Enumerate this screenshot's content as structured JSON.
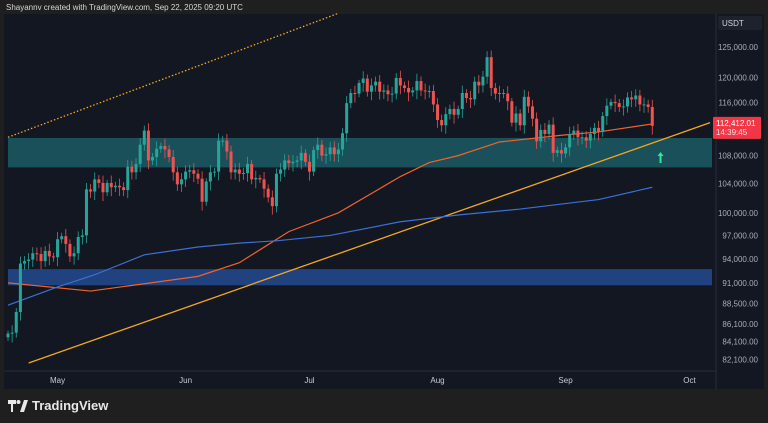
{
  "header": {
    "credit": "Shayannv created with TradingView.com, Sep 22, 2025 09:20 UTC"
  },
  "footer": {
    "logo_text": "TradingView"
  },
  "chart_data": {
    "type": "candlestick",
    "interval": "1D",
    "currency_label": "USDT",
    "y_scale": "log",
    "ylim": [
      80500,
      132000
    ],
    "y_ticks": [
      {
        "value": 125000,
        "label": "125,000.00"
      },
      {
        "value": 120000,
        "label": "120,000.00"
      },
      {
        "value": 116000,
        "label": "116,000.00"
      },
      {
        "value": 108000,
        "label": "108,000.00"
      },
      {
        "value": 104000,
        "label": "104,000.00"
      },
      {
        "value": 100000,
        "label": "100,000.00"
      },
      {
        "value": 97000,
        "label": "97,000.00"
      },
      {
        "value": 94000,
        "label": "94,000.00"
      },
      {
        "value": 91000,
        "label": "91,000.00"
      },
      {
        "value": 88500,
        "label": "88,500.00"
      },
      {
        "value": 86100,
        "label": "86,100.00"
      },
      {
        "value": 84100,
        "label": "84,100.00"
      },
      {
        "value": 82100,
        "label": "82,100.00"
      }
    ],
    "x_ticks": [
      {
        "date": "2025-05-01",
        "label": "May"
      },
      {
        "date": "2025-06-01",
        "label": "Jun"
      },
      {
        "date": "2025-07-01",
        "label": "Jul"
      },
      {
        "date": "2025-08-01",
        "label": "Aug"
      },
      {
        "date": "2025-09-01",
        "label": "Sep"
      },
      {
        "date": "2025-10-01",
        "label": "Oct"
      }
    ],
    "xlim": [
      "2025-04-19",
      "2025-10-07"
    ],
    "last_price": {
      "value": 112412.01,
      "label": "112,412.01",
      "countdown": "14:39:45",
      "color": "#f23645"
    },
    "colors": {
      "up": "#26a69a",
      "down": "#ef5350",
      "background": "#131722",
      "ma_fast": "#f2622c",
      "ma_slow": "#3d6fd6",
      "trendline": "#f5a623",
      "support_zone": "#1c5a63",
      "demand_zone": "#234a8f",
      "arrow": "#2ee89a"
    },
    "closes": [
      [
        "2025-04-19",
        85000
      ],
      [
        "2025-04-20",
        85100
      ],
      [
        "2025-04-21",
        87500
      ],
      [
        "2025-04-22",
        93400
      ],
      [
        "2025-04-23",
        93700
      ],
      [
        "2025-04-24",
        93900
      ],
      [
        "2025-04-25",
        94700
      ],
      [
        "2025-04-26",
        94600
      ],
      [
        "2025-04-27",
        93700
      ],
      [
        "2025-04-28",
        95000
      ],
      [
        "2025-04-29",
        94300
      ],
      [
        "2025-04-30",
        94200
      ],
      [
        "2025-05-01",
        96500
      ],
      [
        "2025-05-02",
        96900
      ],
      [
        "2025-05-03",
        95900
      ],
      [
        "2025-05-04",
        94300
      ],
      [
        "2025-05-05",
        94700
      ],
      [
        "2025-05-06",
        96800
      ],
      [
        "2025-05-07",
        97000
      ],
      [
        "2025-05-08",
        103200
      ],
      [
        "2025-05-09",
        102900
      ],
      [
        "2025-05-10",
        104600
      ],
      [
        "2025-05-11",
        104100
      ],
      [
        "2025-05-12",
        102800
      ],
      [
        "2025-05-13",
        104100
      ],
      [
        "2025-05-14",
        103500
      ],
      [
        "2025-05-15",
        103700
      ],
      [
        "2025-05-16",
        103500
      ],
      [
        "2025-05-17",
        103100
      ],
      [
        "2025-05-18",
        106400
      ],
      [
        "2025-05-19",
        105600
      ],
      [
        "2025-05-20",
        106800
      ],
      [
        "2025-05-21",
        109600
      ],
      [
        "2025-05-22",
        111700
      ],
      [
        "2025-05-23",
        107300
      ],
      [
        "2025-05-24",
        107800
      ],
      [
        "2025-05-25",
        109000
      ],
      [
        "2025-05-26",
        109400
      ],
      [
        "2025-05-27",
        108900
      ],
      [
        "2025-05-28",
        107800
      ],
      [
        "2025-05-29",
        105600
      ],
      [
        "2025-05-30",
        103900
      ],
      [
        "2025-05-31",
        104600
      ],
      [
        "2025-06-01",
        105700
      ],
      [
        "2025-06-02",
        105900
      ],
      [
        "2025-06-03",
        105400
      ],
      [
        "2025-06-04",
        104700
      ],
      [
        "2025-06-05",
        101500
      ],
      [
        "2025-06-06",
        104300
      ],
      [
        "2025-06-07",
        105600
      ],
      [
        "2025-06-08",
        105700
      ],
      [
        "2025-06-09",
        110200
      ],
      [
        "2025-06-10",
        110200
      ],
      [
        "2025-06-11",
        108600
      ],
      [
        "2025-06-12",
        105600
      ],
      [
        "2025-06-13",
        106000
      ],
      [
        "2025-06-14",
        105400
      ],
      [
        "2025-06-15",
        105500
      ],
      [
        "2025-06-16",
        106800
      ],
      [
        "2025-06-17",
        104600
      ],
      [
        "2025-06-18",
        104800
      ],
      [
        "2025-06-19",
        104600
      ],
      [
        "2025-06-20",
        103300
      ],
      [
        "2025-06-21",
        102100
      ],
      [
        "2025-06-22",
        100900
      ],
      [
        "2025-06-23",
        105400
      ],
      [
        "2025-06-24",
        106000
      ],
      [
        "2025-06-25",
        107300
      ],
      [
        "2025-06-26",
        106900
      ],
      [
        "2025-06-27",
        107100
      ],
      [
        "2025-06-28",
        107300
      ],
      [
        "2025-06-29",
        108400
      ],
      [
        "2025-06-30",
        107100
      ],
      [
        "2025-07-01",
        105700
      ],
      [
        "2025-07-02",
        108800
      ],
      [
        "2025-07-03",
        109600
      ],
      [
        "2025-07-04",
        108000
      ],
      [
        "2025-07-05",
        108200
      ],
      [
        "2025-07-06",
        109200
      ],
      [
        "2025-07-07",
        108200
      ],
      [
        "2025-07-08",
        108900
      ],
      [
        "2025-07-09",
        111300
      ],
      [
        "2025-07-10",
        115900
      ],
      [
        "2025-07-11",
        117500
      ],
      [
        "2025-07-12",
        117400
      ],
      [
        "2025-07-13",
        119100
      ],
      [
        "2025-07-14",
        119800
      ],
      [
        "2025-07-15",
        117700
      ],
      [
        "2025-07-16",
        118700
      ],
      [
        "2025-07-17",
        119300
      ],
      [
        "2025-07-18",
        117700
      ],
      [
        "2025-07-19",
        117900
      ],
      [
        "2025-07-20",
        117300
      ],
      [
        "2025-07-21",
        117400
      ],
      [
        "2025-07-22",
        119900
      ],
      [
        "2025-07-23",
        118700
      ],
      [
        "2025-07-24",
        118300
      ],
      [
        "2025-07-25",
        117600
      ],
      [
        "2025-07-26",
        117900
      ],
      [
        "2025-07-27",
        119400
      ],
      [
        "2025-07-28",
        117900
      ],
      [
        "2025-07-29",
        117800
      ],
      [
        "2025-07-30",
        117800
      ],
      [
        "2025-07-31",
        115700
      ],
      [
        "2025-08-01",
        113300
      ],
      [
        "2025-08-02",
        112500
      ],
      [
        "2025-08-03",
        114200
      ],
      [
        "2025-08-04",
        115000
      ],
      [
        "2025-08-05",
        114100
      ],
      [
        "2025-08-06",
        115000
      ],
      [
        "2025-08-07",
        117500
      ],
      [
        "2025-08-08",
        116700
      ],
      [
        "2025-08-09",
        116500
      ],
      [
        "2025-08-10",
        119300
      ],
      [
        "2025-08-11",
        118700
      ],
      [
        "2025-08-12",
        120100
      ],
      [
        "2025-08-13",
        123300
      ],
      [
        "2025-08-14",
        118300
      ],
      [
        "2025-08-15",
        117400
      ],
      [
        "2025-08-16",
        117500
      ],
      [
        "2025-08-17",
        117400
      ],
      [
        "2025-08-18",
        116200
      ],
      [
        "2025-08-19",
        112900
      ],
      [
        "2025-08-20",
        114300
      ],
      [
        "2025-08-21",
        112500
      ],
      [
        "2025-08-22",
        116900
      ],
      [
        "2025-08-23",
        115400
      ],
      [
        "2025-08-24",
        113500
      ],
      [
        "2025-08-25",
        110100
      ],
      [
        "2025-08-26",
        111800
      ],
      [
        "2025-08-27",
        111200
      ],
      [
        "2025-08-28",
        112600
      ],
      [
        "2025-08-29",
        108400
      ],
      [
        "2025-08-30",
        108800
      ],
      [
        "2025-08-31",
        108300
      ],
      [
        "2025-09-01",
        109200
      ],
      [
        "2025-09-02",
        111200
      ],
      [
        "2025-09-03",
        111700
      ],
      [
        "2025-09-04",
        110700
      ],
      [
        "2025-09-05",
        110700
      ],
      [
        "2025-09-06",
        110200
      ],
      [
        "2025-09-07",
        111200
      ],
      [
        "2025-09-08",
        112100
      ],
      [
        "2025-09-09",
        111500
      ],
      [
        "2025-09-10",
        113900
      ],
      [
        "2025-09-11",
        115500
      ],
      [
        "2025-09-12",
        116100
      ],
      [
        "2025-09-13",
        115900
      ],
      [
        "2025-09-14",
        115300
      ],
      [
        "2025-09-15",
        115400
      ],
      [
        "2025-09-16",
        116800
      ],
      [
        "2025-09-17",
        116500
      ],
      [
        "2025-09-18",
        117100
      ],
      [
        "2025-09-19",
        115700
      ],
      [
        "2025-09-20",
        115700
      ],
      [
        "2025-09-21",
        115300
      ],
      [
        "2025-09-22",
        112412.01
      ]
    ],
    "moving_averages": [
      {
        "color_key": "ma_fast",
        "points": [
          [
            "2025-04-19",
            91000
          ],
          [
            "2025-05-09",
            90000
          ],
          [
            "2025-06-04",
            91800
          ],
          [
            "2025-06-14",
            93500
          ],
          [
            "2025-06-26",
            97500
          ],
          [
            "2025-07-08",
            100000
          ],
          [
            "2025-07-23",
            105000
          ],
          [
            "2025-07-30",
            107000
          ],
          [
            "2025-08-06",
            108000
          ],
          [
            "2025-08-16",
            110000
          ],
          [
            "2025-08-31",
            111000
          ],
          [
            "2025-09-09",
            111500
          ],
          [
            "2025-09-22",
            112700
          ]
        ]
      },
      {
        "color_key": "ma_slow",
        "points": [
          [
            "2025-04-19",
            88300
          ],
          [
            "2025-05-01",
            90500
          ],
          [
            "2025-05-10",
            92000
          ],
          [
            "2025-05-22",
            94500
          ],
          [
            "2025-06-04",
            95500
          ],
          [
            "2025-06-14",
            96000
          ],
          [
            "2025-06-23",
            96300
          ],
          [
            "2025-07-06",
            97000
          ],
          [
            "2025-07-23",
            98800
          ],
          [
            "2025-08-06",
            99700
          ],
          [
            "2025-08-21",
            100500
          ],
          [
            "2025-09-09",
            101800
          ],
          [
            "2025-09-22",
            103500
          ]
        ]
      }
    ],
    "zones": [
      {
        "color_key": "support_zone",
        "top": 110600,
        "bottom": 106300
      },
      {
        "color_key": "demand_zone",
        "top": 92700,
        "bottom": 90700
      }
    ],
    "trendlines": [
      {
        "color_key": "trendline",
        "style": "solid",
        "from": [
          "2025-04-24",
          81700
        ],
        "to": [
          "2025-10-06",
          112900
        ]
      },
      {
        "color_key": "trendline",
        "style": "dotted",
        "from": [
          "2025-04-19",
          110700
        ],
        "to": [
          "2025-07-08",
          130800
        ]
      }
    ],
    "annotations": [
      {
        "type": "up-arrow",
        "date": "2025-09-24",
        "price": 107500,
        "color_key": "arrow"
      }
    ]
  }
}
